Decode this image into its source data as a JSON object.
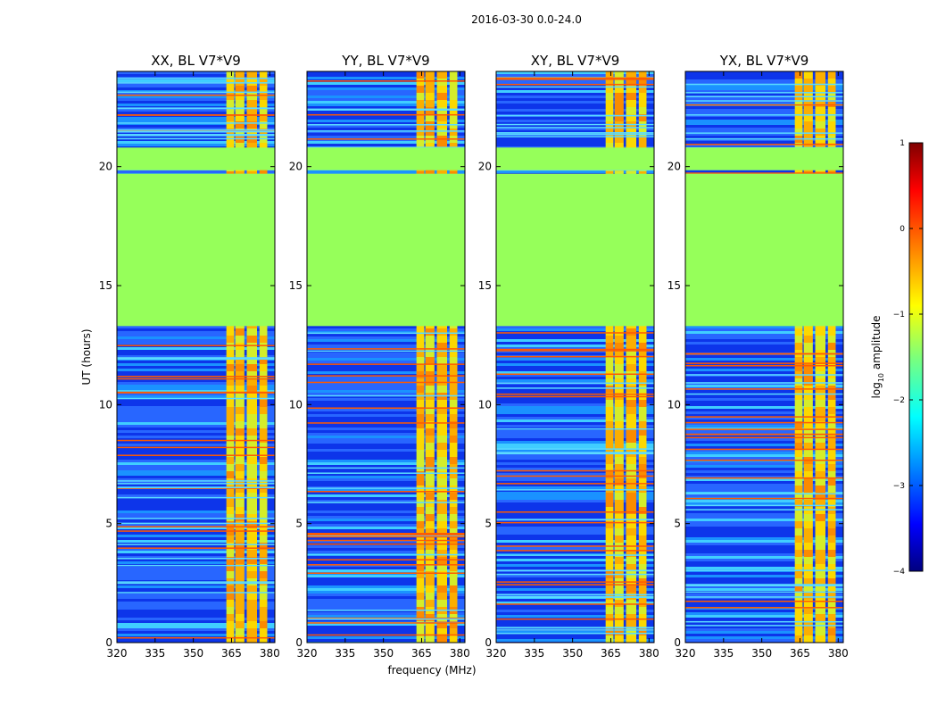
{
  "figure": {
    "suptitle": "2016-03-30 0.0-24.0"
  },
  "colors": {
    "background": "#ffffff",
    "axis": "#000000",
    "flagged_fill": "#96ff5a",
    "rfi_line": "#ff5a00"
  },
  "chart_data": [
    {
      "type": "heatmap",
      "title": "XX, BL V7*V9",
      "xlabel": "",
      "ylabel": "UT (hours)",
      "xlim": [
        320,
        382
      ],
      "ylim": [
        0,
        24
      ],
      "xticks": [
        320,
        335,
        350,
        365,
        380
      ],
      "yticks": [
        0,
        5,
        10,
        15,
        20
      ],
      "flagged_ut_ranges": [
        [
          13.3,
          19.7
        ],
        [
          19.85,
          20.8
        ]
      ],
      "strong_signal_freq_ranges": [
        [
          363,
          366
        ],
        [
          366.5,
          370
        ],
        [
          371,
          375
        ],
        [
          376,
          379
        ]
      ],
      "colormap": "jet",
      "value_label": "log10 amplitude",
      "vmin": -4,
      "vmax": 1
    },
    {
      "type": "heatmap",
      "title": "YY, BL V7*V9",
      "xlabel": "frequency (MHz)",
      "ylabel": "",
      "xlim": [
        320,
        382
      ],
      "ylim": [
        0,
        24
      ],
      "xticks": [
        320,
        335,
        350,
        365,
        380
      ],
      "yticks": [
        0,
        5,
        10,
        15,
        20
      ],
      "flagged_ut_ranges": [
        [
          13.3,
          19.7
        ],
        [
          19.85,
          20.8
        ]
      ],
      "strong_signal_freq_ranges": [
        [
          363,
          366
        ],
        [
          366.5,
          370
        ],
        [
          371,
          375
        ],
        [
          376,
          379
        ]
      ],
      "colormap": "jet",
      "value_label": "log10 amplitude",
      "vmin": -4,
      "vmax": 1
    },
    {
      "type": "heatmap",
      "title": "XY, BL V7*V9",
      "xlabel": "",
      "ylabel": "",
      "xlim": [
        320,
        382
      ],
      "ylim": [
        0,
        24
      ],
      "xticks": [
        320,
        335,
        350,
        365,
        380
      ],
      "yticks": [
        0,
        5,
        10,
        15,
        20
      ],
      "flagged_ut_ranges": [
        [
          13.3,
          19.7
        ],
        [
          19.85,
          20.8
        ]
      ],
      "strong_signal_freq_ranges": [
        [
          363,
          366
        ],
        [
          366.5,
          370
        ],
        [
          371,
          375
        ],
        [
          376,
          379
        ]
      ],
      "colormap": "jet",
      "value_label": "log10 amplitude",
      "vmin": -4,
      "vmax": 1
    },
    {
      "type": "heatmap",
      "title": "YX, BL V7*V9",
      "xlabel": "",
      "ylabel": "",
      "xlim": [
        320,
        382
      ],
      "ylim": [
        0,
        24
      ],
      "xticks": [
        320,
        335,
        350,
        365,
        380
      ],
      "yticks": [
        0,
        5,
        10,
        15,
        20
      ],
      "flagged_ut_ranges": [
        [
          13.3,
          19.7
        ],
        [
          19.85,
          20.8
        ]
      ],
      "strong_signal_freq_ranges": [
        [
          363,
          366
        ],
        [
          366.5,
          370
        ],
        [
          371,
          375
        ],
        [
          376,
          379
        ]
      ],
      "colormap": "jet",
      "value_label": "log10 amplitude",
      "vmin": -4,
      "vmax": 1
    }
  ],
  "colorbar": {
    "label_prefix": "log",
    "label_sub": "10",
    "label_suffix": " amplitude",
    "ticks": [
      1,
      0,
      -1,
      -2,
      -3,
      -4
    ],
    "tick_labels": [
      "1",
      "0",
      "−1",
      "−2",
      "−3",
      "−4"
    ],
    "range": [
      -4,
      1
    ]
  }
}
